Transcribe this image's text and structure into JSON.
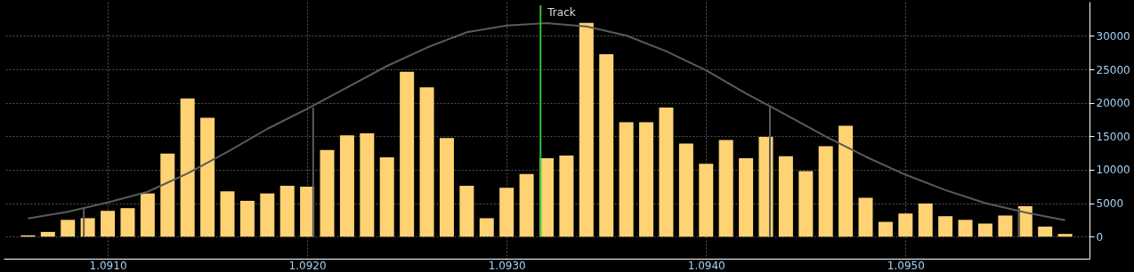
{
  "chart_data": {
    "type": "bar",
    "x": [
      1.0906,
      1.0907,
      1.0908,
      1.0909,
      1.091,
      1.0911,
      1.0912,
      1.0913,
      1.0914,
      1.0915,
      1.0916,
      1.0917,
      1.0918,
      1.0919,
      1.092,
      1.0921,
      1.0922,
      1.0923,
      1.0924,
      1.0925,
      1.0926,
      1.0927,
      1.0928,
      1.0929,
      1.093,
      1.0931,
      1.0932,
      1.0933,
      1.0934,
      1.0935,
      1.0936,
      1.0937,
      1.0938,
      1.0939,
      1.094,
      1.0941,
      1.0942,
      1.0943,
      1.0944,
      1.0945,
      1.0946,
      1.0947,
      1.0948,
      1.0949,
      1.095,
      1.0951,
      1.0952,
      1.0953,
      1.0954,
      1.0955,
      1.0956,
      1.0957,
      1.0958
    ],
    "series": [
      {
        "color": "#ffd274",
        "values": [
          200,
          700,
          2500,
          2750,
          3850,
          4250,
          6450,
          12400,
          20650,
          17750,
          6750,
          5350,
          6450,
          7600,
          7450,
          12950,
          15150,
          15450,
          11850,
          24650,
          22300,
          14750,
          7600,
          2750,
          7300,
          9350,
          11700,
          12100,
          31950,
          27250,
          17100,
          17100,
          19300,
          13900,
          10900,
          14450,
          11700,
          14900,
          12000,
          9800,
          13500,
          16550,
          5800,
          2200,
          3450,
          4950,
          3050,
          2500,
          1950,
          3150,
          4550,
          1500,
          400
        ]
      },
      {
        "type": "line",
        "color": "#5a5a5a",
        "x": [
          1.0906,
          1.0908,
          1.091,
          1.0912,
          1.0914,
          1.0916,
          1.0918,
          1.092,
          1.0922,
          1.0924,
          1.0926,
          1.0928,
          1.093,
          1.0932,
          1.0934,
          1.0936,
          1.0938,
          1.094,
          1.0942,
          1.0944,
          1.0946,
          1.0948,
          1.095,
          1.0952,
          1.0954,
          1.0956,
          1.0958
        ],
        "values": [
          2700,
          3700,
          5100,
          6700,
          9450,
          12650,
          16100,
          19100,
          22300,
          25500,
          28250,
          30550,
          31550,
          31900,
          31400,
          30050,
          27700,
          24850,
          21400,
          18200,
          14950,
          11950,
          9250,
          6950,
          5000,
          3600,
          2450
        ]
      },
      {
        "type": "line",
        "color": "#5a5a5a",
        "x": [
          1.09088,
          1.09088
        ],
        "values": [
          0,
          4250
        ]
      },
      {
        "type": "line",
        "color": "#5a5a5a",
        "x": [
          1.09203,
          1.09203
        ],
        "values": [
          0,
          19300
        ]
      },
      {
        "type": "line",
        "color": "#5a5a5a",
        "x": [
          1.09432,
          1.09432
        ],
        "values": [
          0,
          19400
        ]
      },
      {
        "type": "line",
        "color": "#5a5a5a",
        "x": [
          1.09557,
          1.09557
        ],
        "values": [
          0,
          4250
        ]
      }
    ],
    "xlim": [
      1.0905,
      1.0959
    ],
    "xticks": [
      {
        "value": 1.091,
        "label": "1.0910"
      },
      {
        "value": 1.092,
        "label": "1.0920"
      },
      {
        "value": 1.093,
        "label": "1.0930"
      },
      {
        "value": 1.094,
        "label": "1.0940"
      },
      {
        "value": 1.095,
        "label": "1.0950"
      }
    ],
    "ylim": [
      -3300,
      35100
    ],
    "yticks": [
      0,
      5000,
      10000,
      15000,
      20000,
      25000,
      30000
    ],
    "ref_lines": [
      {
        "axis": "x",
        "value": 1.09317,
        "label": "Track",
        "color": "#2fc42f"
      }
    ],
    "grid": true
  }
}
